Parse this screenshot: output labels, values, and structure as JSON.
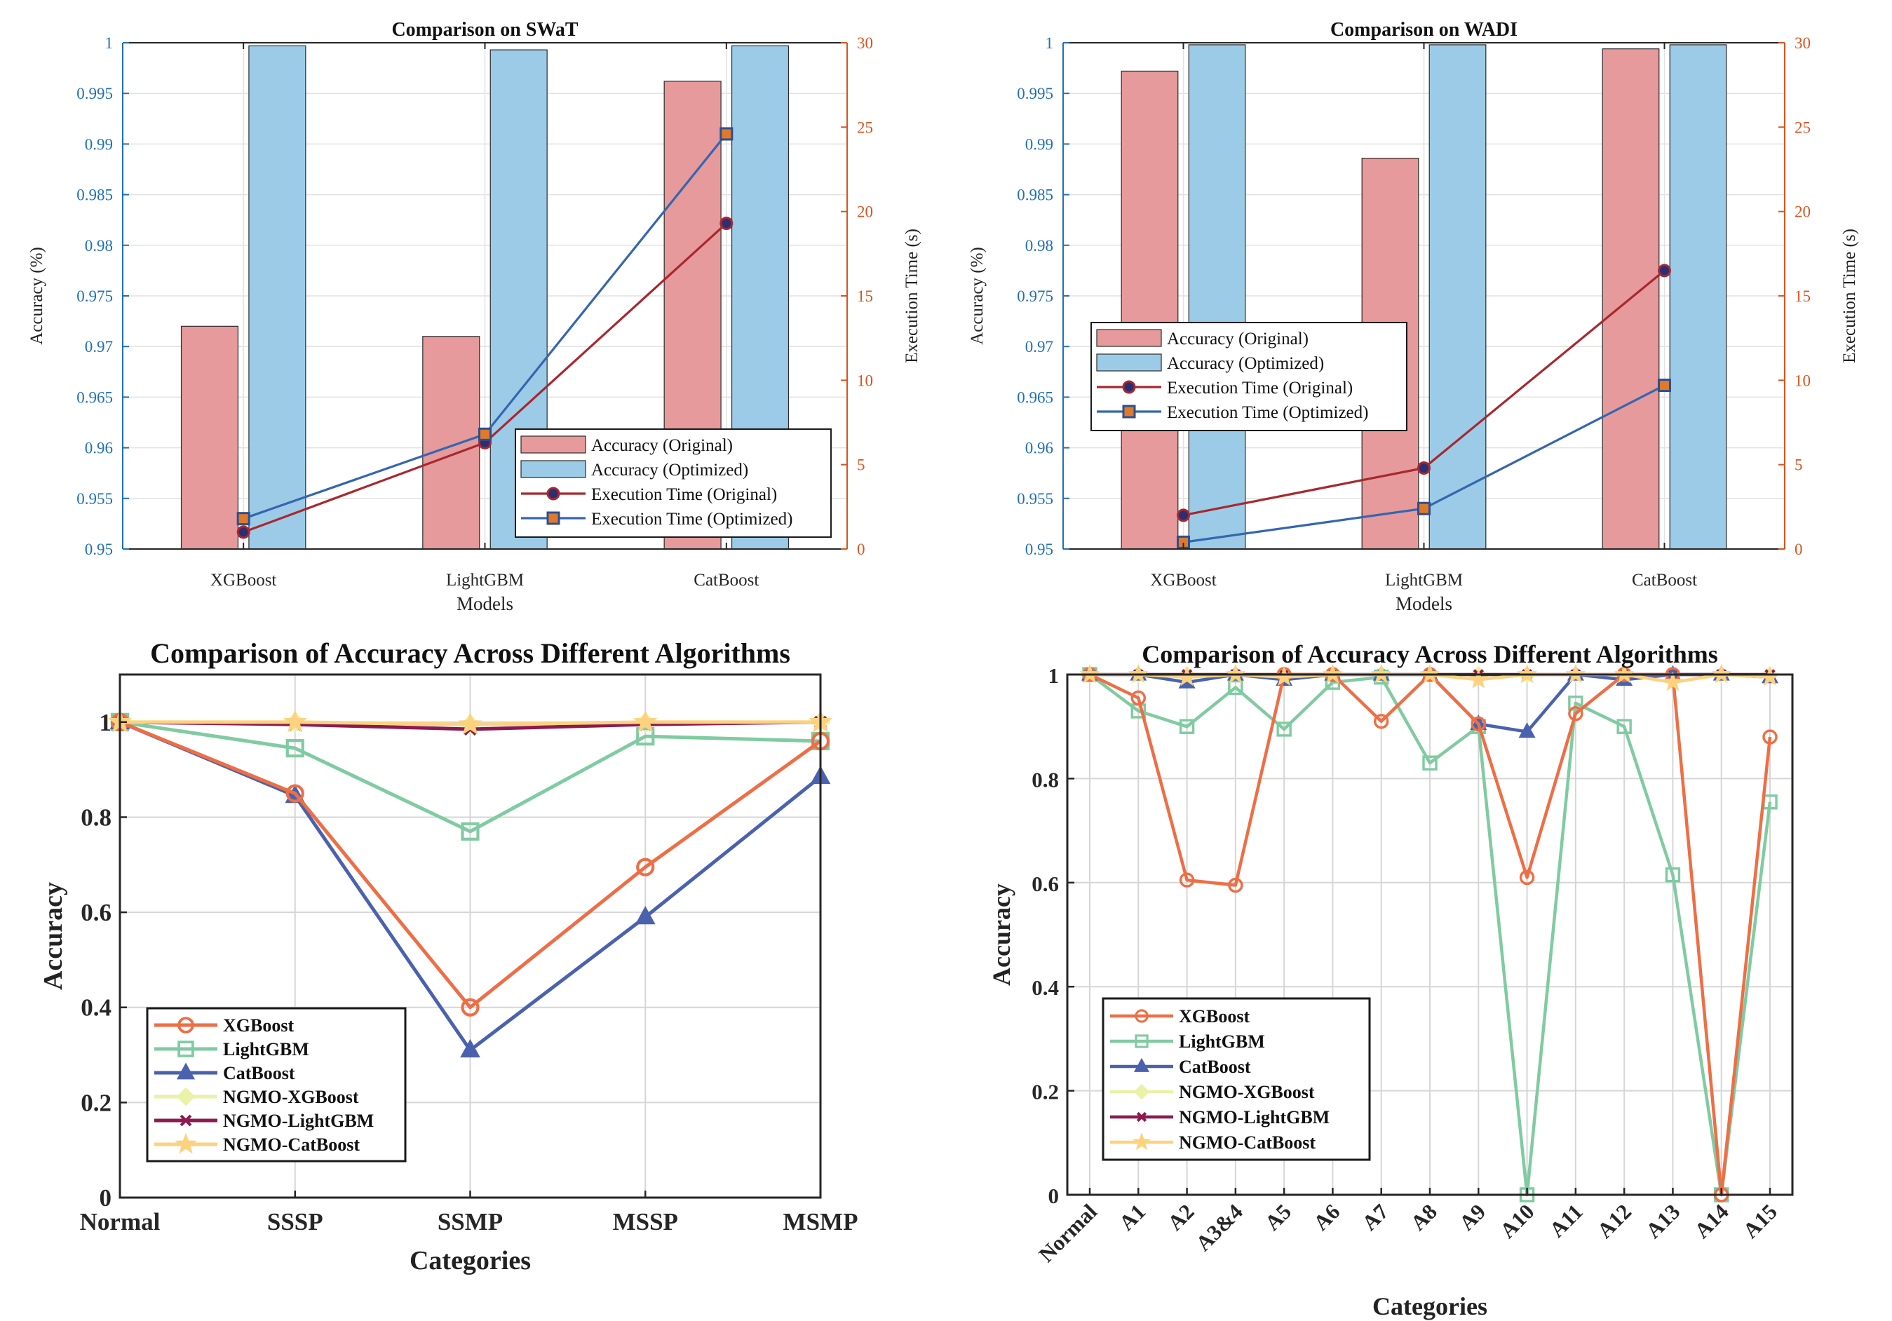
{
  "colors": {
    "acc_orig": "#e69a9b",
    "acc_opt": "#9ccbe8",
    "time_orig": "#a8282f",
    "time_opt": "#3466b0",
    "left_axis": "#1f6fb8",
    "right_axis": "#d9531e",
    "xgb": "#ee6e45",
    "lgbm": "#80cba1",
    "cat": "#4a62ae",
    "ngmo_xgb": "#e9f2a6",
    "ngmo_lgbm": "#8c1a4e",
    "ngmo_cat": "#fdd27f"
  },
  "chart_data": [
    {
      "id": "swat",
      "type": "bar",
      "title": "Comparison on SWaT",
      "xlabel": "Models",
      "ylabel": "Accuracy (%)",
      "ylabel_right": "Execution Time (s)",
      "categories": [
        "XGBoost",
        "LightGBM",
        "CatBoost"
      ],
      "ylim": [
        0.95,
        1.0
      ],
      "yticks": [
        0.95,
        0.955,
        0.96,
        0.965,
        0.97,
        0.975,
        0.98,
        0.985,
        0.99,
        0.995,
        1
      ],
      "ytick_labels": [
        "0.95",
        "0.955",
        "0.96",
        "0.965",
        "0.97",
        "0.975",
        "0.98",
        "0.985",
        "0.99",
        "0.995",
        "1"
      ],
      "ylim_right": [
        0,
        30
      ],
      "yticks_right": [
        0,
        5,
        10,
        15,
        20,
        25,
        30
      ],
      "series": [
        {
          "name": "Accuracy (Original)",
          "kind": "bar",
          "values": [
            0.972,
            0.971,
            0.9962
          ]
        },
        {
          "name": "Accuracy (Optimized)",
          "kind": "bar",
          "values": [
            0.9997,
            0.9993,
            0.9997
          ]
        },
        {
          "name": "Execution Time (Original)",
          "kind": "line",
          "axis": "right",
          "marker": "circle",
          "values": [
            1.0,
            6.3,
            19.3
          ]
        },
        {
          "name": "Execution Time (Optimized)",
          "kind": "line",
          "axis": "right",
          "marker": "square",
          "values": [
            1.8,
            6.8,
            24.6
          ]
        }
      ],
      "legend": "bottom-right"
    },
    {
      "id": "wadi",
      "type": "bar",
      "title": "Comparison on WADI",
      "xlabel": "Models",
      "ylabel": "Accuracy (%)",
      "ylabel_right": "Execution Time (s)",
      "categories": [
        "XGBoost",
        "LightGBM",
        "CatBoost"
      ],
      "ylim": [
        0.95,
        1.0
      ],
      "yticks": [
        0.95,
        0.955,
        0.96,
        0.965,
        0.97,
        0.975,
        0.98,
        0.985,
        0.99,
        0.995,
        1
      ],
      "ytick_labels": [
        "0.95",
        "0.955",
        "0.96",
        "0.965",
        "0.97",
        "0.975",
        "0.98",
        "0.985",
        "0.99",
        "0.995",
        "1"
      ],
      "ylim_right": [
        0,
        30
      ],
      "yticks_right": [
        0,
        5,
        10,
        15,
        20,
        25,
        30
      ],
      "series": [
        {
          "name": "Accuracy (Original)",
          "kind": "bar",
          "values": [
            0.9972,
            0.9886,
            0.9994
          ]
        },
        {
          "name": "Accuracy (Optimized)",
          "kind": "bar",
          "values": [
            0.9998,
            0.9998,
            0.9998
          ]
        },
        {
          "name": "Execution Time (Original)",
          "kind": "line",
          "axis": "right",
          "marker": "circle",
          "values": [
            2.0,
            4.8,
            16.5
          ]
        },
        {
          "name": "Execution Time (Optimized)",
          "kind": "line",
          "axis": "right",
          "marker": "square",
          "values": [
            0.4,
            2.4,
            9.7
          ]
        }
      ],
      "legend": "middle-left"
    },
    {
      "id": "alg5",
      "type": "line",
      "title": "Comparison of Accuracy Across Different Algorithms",
      "xlabel": "Categories",
      "ylabel": "Accuracy",
      "categories": [
        "Normal",
        "SSSP",
        "SSMP",
        "MSSP",
        "MSMP"
      ],
      "ylim": [
        0,
        1.1
      ],
      "yticks": [
        0,
        0.2,
        0.4,
        0.6,
        0.8,
        1
      ],
      "ytick_labels": [
        "0",
        "0.2",
        "0.4",
        "0.6",
        "0.8",
        "1"
      ],
      "grid": true,
      "series": [
        {
          "name": "XGBoost",
          "marker": "circle",
          "values": [
            1.0,
            0.85,
            0.4,
            0.695,
            0.96
          ]
        },
        {
          "name": "LightGBM",
          "marker": "square",
          "values": [
            1.0,
            0.945,
            0.77,
            0.97,
            0.96
          ]
        },
        {
          "name": "CatBoost",
          "marker": "triangle",
          "values": [
            1.0,
            0.845,
            0.31,
            0.59,
            0.885
          ]
        },
        {
          "name": "NGMO-XGBoost",
          "marker": "diamond",
          "values": [
            1.0,
            0.999,
            0.995,
            0.999,
            1.0
          ]
        },
        {
          "name": "NGMO-LightGBM",
          "marker": "x",
          "values": [
            1.0,
            0.995,
            0.985,
            0.995,
            1.0
          ]
        },
        {
          "name": "NGMO-CatBoost",
          "marker": "star",
          "values": [
            1.0,
            1.0,
            0.995,
            1.0,
            1.0
          ]
        }
      ],
      "legend": "bottom-left"
    },
    {
      "id": "alg16",
      "type": "line",
      "title": "Comparison of Accuracy Across Different Algorithms",
      "xlabel": "Categories",
      "ylabel": "Accuracy",
      "categories": [
        "Normal",
        "A1",
        "A2",
        "A3&4",
        "A5",
        "A6",
        "A7",
        "A8",
        "A9",
        "A10",
        "A11",
        "A12",
        "A13",
        "A14",
        "A15"
      ],
      "ylim": [
        0,
        1
      ],
      "yticks": [
        0,
        0.2,
        0.4,
        0.6,
        0.8,
        1
      ],
      "ytick_labels": [
        "0",
        "0.2",
        "0.4",
        "0.6",
        "0.8",
        "1"
      ],
      "grid": true,
      "series": [
        {
          "name": "XGBoost",
          "marker": "circle",
          "values": [
            1.0,
            0.955,
            0.605,
            0.595,
            1.0,
            1.0,
            0.91,
            1.0,
            0.905,
            0.61,
            0.925,
            1.0,
            1.0,
            0.0,
            0.88
          ]
        },
        {
          "name": "LightGBM",
          "marker": "square",
          "values": [
            1.0,
            0.93,
            0.9,
            0.975,
            0.895,
            0.985,
            0.995,
            0.83,
            0.9,
            0.0,
            0.945,
            0.9,
            0.615,
            0.0,
            0.755
          ]
        },
        {
          "name": "CatBoost",
          "marker": "triangle",
          "values": [
            1.0,
            1.0,
            0.985,
            1.0,
            0.99,
            1.0,
            1.0,
            1.0,
            0.905,
            0.89,
            1.0,
            0.99,
            1.0,
            1.0,
            0.995
          ]
        },
        {
          "name": "NGMO-XGBoost",
          "marker": "diamond",
          "values": [
            1.0,
            1.0,
            1.0,
            1.0,
            1.0,
            1.0,
            1.0,
            1.0,
            1.0,
            1.0,
            1.0,
            1.0,
            1.0,
            1.0,
            1.0
          ]
        },
        {
          "name": "NGMO-LightGBM",
          "marker": "x",
          "values": [
            1.0,
            1.0,
            1.0,
            1.0,
            1.0,
            1.0,
            1.0,
            1.0,
            1.0,
            1.0,
            1.0,
            1.0,
            1.0,
            1.0,
            1.0
          ]
        },
        {
          "name": "NGMO-CatBoost",
          "marker": "star",
          "values": [
            1.0,
            1.0,
            0.995,
            1.0,
            0.995,
            1.0,
            1.0,
            1.0,
            0.99,
            1.0,
            1.0,
            1.0,
            0.985,
            1.0,
            0.995
          ]
        }
      ],
      "legend": "bottom-left"
    }
  ]
}
